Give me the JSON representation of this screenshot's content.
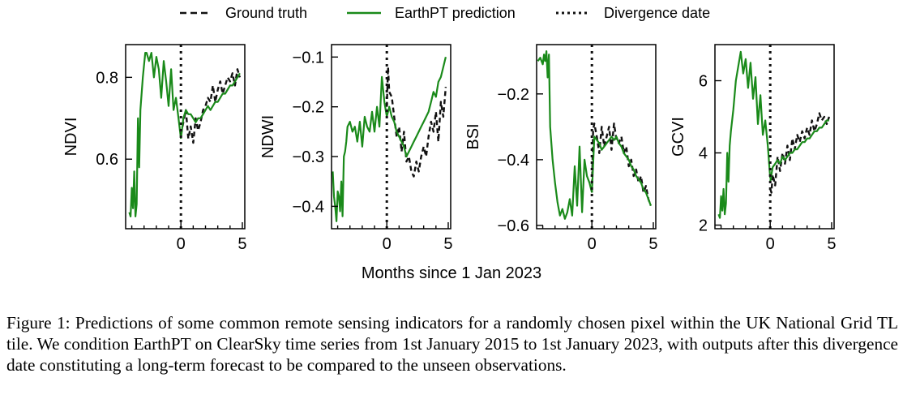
{
  "legend": {
    "ground_truth": "Ground truth",
    "prediction": "EarthPT prediction",
    "divergence": "Divergence date"
  },
  "colors": {
    "prediction": "#1a8a1a",
    "ground_truth": "#111111",
    "axis": "#000000"
  },
  "shared_xlabel": "Months since 1 Jan 2023",
  "caption": "Figure 1: Predictions of some common remote sensing indicators for a randomly chosen pixel within the UK National Grid TL tile. We condition EarthPT on ClearSky time series from 1st January 2015 to 1st January 2023, with outputs after this divergence date constituting a long-term forecast to be compared to the unseen observations.",
  "chart_data": [
    {
      "type": "line",
      "ylabel": "NDVI",
      "xlim": [
        -4.5,
        5.2
      ],
      "ylim": [
        0.43,
        0.88
      ],
      "xticks": [
        0,
        5
      ],
      "yticks": [
        0.6,
        0.8
      ],
      "ytick_labels": [
        "0.6",
        "0.8"
      ],
      "divergence_x": 0,
      "series": [
        {
          "name": "EarthPT prediction",
          "role": "context",
          "x": [
            -4.2,
            -4.1,
            -4.0,
            -3.9,
            -3.8,
            -3.7,
            -3.6,
            -3.5,
            -3.4,
            -3.3,
            -3.2,
            -3.1,
            -3.0,
            -2.9,
            -2.8,
            -2.6,
            -2.4,
            -2.2,
            -2.0,
            -1.8,
            -1.6,
            -1.4,
            -1.2,
            -1.0,
            -0.8,
            -0.6,
            -0.4,
            -0.2,
            0.0
          ],
          "y": [
            0.47,
            0.46,
            0.53,
            0.48,
            0.57,
            0.46,
            0.49,
            0.7,
            0.58,
            0.72,
            0.76,
            0.8,
            0.83,
            0.86,
            0.86,
            0.84,
            0.86,
            0.8,
            0.85,
            0.82,
            0.75,
            0.84,
            0.79,
            0.73,
            0.82,
            0.72,
            0.75,
            0.7,
            0.65
          ]
        },
        {
          "name": "Ground truth",
          "role": "observed",
          "x": [
            0.0,
            0.2,
            0.4,
            0.6,
            0.8,
            1.0,
            1.2,
            1.4,
            1.6,
            1.8,
            2.0,
            2.2,
            2.4,
            2.6,
            2.8,
            3.0,
            3.2,
            3.4,
            3.6,
            3.8,
            4.0,
            4.2,
            4.4,
            4.6,
            4.8
          ],
          "y": [
            0.66,
            0.69,
            0.72,
            0.65,
            0.68,
            0.64,
            0.7,
            0.67,
            0.69,
            0.72,
            0.73,
            0.75,
            0.74,
            0.78,
            0.74,
            0.77,
            0.79,
            0.76,
            0.78,
            0.8,
            0.79,
            0.81,
            0.78,
            0.82,
            0.8
          ]
        },
        {
          "name": "EarthPT prediction",
          "role": "forecast",
          "x": [
            0.0,
            0.2,
            0.4,
            0.6,
            0.8,
            1.0,
            1.2,
            1.4,
            1.6,
            1.8,
            2.0,
            2.2,
            2.4,
            2.6,
            2.8,
            3.0,
            3.2,
            3.4,
            3.6,
            3.8,
            4.0,
            4.2,
            4.4,
            4.6,
            4.8
          ],
          "y": [
            0.65,
            0.7,
            0.72,
            0.71,
            0.71,
            0.7,
            0.69,
            0.7,
            0.7,
            0.71,
            0.72,
            0.73,
            0.72,
            0.73,
            0.74,
            0.74,
            0.75,
            0.76,
            0.76,
            0.77,
            0.78,
            0.78,
            0.79,
            0.8,
            0.81
          ]
        }
      ]
    },
    {
      "type": "line",
      "ylabel": "NDWI",
      "xlim": [
        -4.5,
        5.2
      ],
      "ylim": [
        -0.445,
        -0.075
      ],
      "xticks": [
        0,
        5
      ],
      "yticks": [
        -0.4,
        -0.3,
        -0.2,
        -0.1
      ],
      "ytick_labels": [
        "−0.4",
        "−0.3",
        "−0.2",
        "−0.1"
      ],
      "divergence_x": 0,
      "series": [
        {
          "name": "EarthPT prediction",
          "role": "context",
          "x": [
            -4.4,
            -4.3,
            -4.2,
            -4.1,
            -4.0,
            -3.9,
            -3.8,
            -3.7,
            -3.6,
            -3.5,
            -3.4,
            -3.3,
            -3.2,
            -3.0,
            -2.8,
            -2.6,
            -2.4,
            -2.2,
            -2.0,
            -1.8,
            -1.6,
            -1.4,
            -1.2,
            -1.0,
            -0.8,
            -0.6,
            -0.4,
            -0.2,
            0.0
          ],
          "y": [
            -0.33,
            -0.38,
            -0.4,
            -0.43,
            -0.37,
            -0.38,
            -0.41,
            -0.35,
            -0.42,
            -0.3,
            -0.29,
            -0.27,
            -0.24,
            -0.23,
            -0.25,
            -0.24,
            -0.27,
            -0.23,
            -0.28,
            -0.22,
            -0.24,
            -0.25,
            -0.21,
            -0.25,
            -0.2,
            -0.24,
            -0.14,
            -0.19,
            -0.22
          ]
        },
        {
          "name": "Ground truth",
          "role": "observed",
          "x": [
            0.0,
            0.1,
            0.2,
            0.4,
            0.6,
            0.8,
            1.0,
            1.2,
            1.4,
            1.6,
            1.8,
            2.0,
            2.2,
            2.4,
            2.6,
            2.8,
            3.0,
            3.2,
            3.4,
            3.6,
            3.8,
            4.0,
            4.2,
            4.4,
            4.6,
            4.8
          ],
          "y": [
            -0.2,
            -0.12,
            -0.17,
            -0.18,
            -0.22,
            -0.26,
            -0.24,
            -0.29,
            -0.25,
            -0.31,
            -0.3,
            -0.33,
            -0.34,
            -0.31,
            -0.33,
            -0.3,
            -0.28,
            -0.3,
            -0.26,
            -0.23,
            -0.25,
            -0.21,
            -0.27,
            -0.19,
            -0.22,
            -0.16
          ]
        },
        {
          "name": "EarthPT prediction",
          "role": "forecast",
          "x": [
            0.0,
            0.2,
            0.4,
            0.6,
            0.8,
            1.0,
            1.2,
            1.4,
            1.6,
            1.8,
            2.0,
            2.2,
            2.4,
            2.6,
            2.8,
            3.0,
            3.2,
            3.4,
            3.6,
            3.8,
            4.0,
            4.2,
            4.4,
            4.6,
            4.8
          ],
          "y": [
            -0.22,
            -0.2,
            -0.22,
            -0.23,
            -0.25,
            -0.26,
            -0.27,
            -0.28,
            -0.3,
            -0.29,
            -0.28,
            -0.27,
            -0.26,
            -0.25,
            -0.24,
            -0.23,
            -0.22,
            -0.21,
            -0.19,
            -0.17,
            -0.18,
            -0.15,
            -0.14,
            -0.12,
            -0.1
          ]
        }
      ]
    },
    {
      "type": "line",
      "ylabel": "BSI",
      "xlim": [
        -4.5,
        5.2
      ],
      "ylim": [
        -0.61,
        -0.05
      ],
      "xticks": [
        0,
        5
      ],
      "yticks": [
        -0.6,
        -0.4,
        -0.2
      ],
      "ytick_labels": [
        "−0.6",
        "−0.4",
        "−0.2"
      ],
      "divergence_x": 0,
      "series": [
        {
          "name": "EarthPT prediction",
          "role": "context",
          "x": [
            -4.4,
            -4.2,
            -4.0,
            -3.9,
            -3.8,
            -3.7,
            -3.6,
            -3.5,
            -3.4,
            -3.3,
            -3.2,
            -3.0,
            -2.8,
            -2.6,
            -2.4,
            -2.2,
            -2.0,
            -1.8,
            -1.6,
            -1.4,
            -1.2,
            -1.0,
            -0.8,
            -0.6,
            -0.4,
            -0.2,
            0.0
          ],
          "y": [
            -0.1,
            -0.09,
            -0.11,
            -0.08,
            -0.1,
            -0.07,
            -0.15,
            -0.08,
            -0.3,
            -0.35,
            -0.4,
            -0.47,
            -0.53,
            -0.57,
            -0.55,
            -0.58,
            -0.56,
            -0.52,
            -0.57,
            -0.42,
            -0.54,
            -0.36,
            -0.56,
            -0.4,
            -0.45,
            -0.47,
            -0.5
          ]
        },
        {
          "name": "Ground truth",
          "role": "observed",
          "x": [
            0.0,
            0.1,
            0.2,
            0.4,
            0.6,
            0.8,
            1.0,
            1.2,
            1.4,
            1.6,
            1.8,
            2.0,
            2.2,
            2.4,
            2.6,
            2.8,
            3.0,
            3.2,
            3.4,
            3.6,
            3.8,
            4.0,
            4.2,
            4.4,
            4.6,
            4.8
          ],
          "y": [
            -0.5,
            -0.31,
            -0.29,
            -0.33,
            -0.38,
            -0.3,
            -0.36,
            -0.33,
            -0.3,
            -0.37,
            -0.29,
            -0.34,
            -0.35,
            -0.33,
            -0.38,
            -0.36,
            -0.42,
            -0.4,
            -0.45,
            -0.43,
            -0.47,
            -0.45,
            -0.5,
            -0.48,
            -0.52,
            -0.54
          ]
        },
        {
          "name": "EarthPT prediction",
          "role": "forecast",
          "x": [
            0.0,
            0.2,
            0.4,
            0.6,
            0.8,
            1.0,
            1.2,
            1.4,
            1.6,
            1.8,
            2.0,
            2.2,
            2.4,
            2.6,
            2.8,
            3.0,
            3.2,
            3.4,
            3.6,
            3.8,
            4.0,
            4.2,
            4.4,
            4.6,
            4.8
          ],
          "y": [
            -0.5,
            -0.33,
            -0.34,
            -0.35,
            -0.37,
            -0.36,
            -0.35,
            -0.34,
            -0.33,
            -0.34,
            -0.33,
            -0.35,
            -0.36,
            -0.38,
            -0.39,
            -0.4,
            -0.42,
            -0.43,
            -0.45,
            -0.46,
            -0.47,
            -0.49,
            -0.5,
            -0.52,
            -0.54
          ]
        }
      ]
    },
    {
      "type": "line",
      "ylabel": "GCVI",
      "xlim": [
        -4.5,
        5.2
      ],
      "ylim": [
        1.9,
        7.0
      ],
      "xticks": [
        0,
        5
      ],
      "yticks": [
        2,
        4,
        6
      ],
      "ytick_labels": [
        "2",
        "4",
        "6"
      ],
      "divergence_x": 0,
      "series": [
        {
          "name": "EarthPT prediction",
          "role": "context",
          "x": [
            -4.2,
            -4.1,
            -4.0,
            -3.9,
            -3.8,
            -3.7,
            -3.6,
            -3.5,
            -3.4,
            -3.3,
            -3.2,
            -3.0,
            -2.8,
            -2.6,
            -2.4,
            -2.2,
            -2.0,
            -1.8,
            -1.6,
            -1.4,
            -1.2,
            -1.0,
            -0.8,
            -0.6,
            -0.4,
            -0.2,
            0.0
          ],
          "y": [
            2.3,
            2.2,
            2.8,
            2.4,
            3.0,
            2.3,
            2.6,
            4.0,
            3.2,
            4.2,
            4.6,
            5.2,
            6.0,
            6.4,
            6.8,
            6.2,
            6.6,
            5.8,
            6.5,
            5.5,
            6.1,
            4.8,
            5.6,
            4.5,
            4.9,
            4.2,
            3.3
          ]
        },
        {
          "name": "Ground truth",
          "role": "observed",
          "x": [
            0.0,
            0.1,
            0.2,
            0.4,
            0.6,
            0.8,
            1.0,
            1.2,
            1.4,
            1.6,
            1.8,
            2.0,
            2.2,
            2.4,
            2.6,
            2.8,
            3.0,
            3.2,
            3.4,
            3.6,
            3.8,
            4.0,
            4.2,
            4.4,
            4.6,
            4.8
          ],
          "y": [
            3.0,
            2.9,
            3.4,
            3.1,
            3.9,
            3.5,
            4.0,
            3.7,
            4.2,
            3.8,
            4.4,
            4.1,
            4.5,
            4.3,
            4.6,
            4.4,
            4.7,
            4.5,
            4.9,
            4.6,
            4.8,
            5.1,
            4.9,
            5.0,
            4.8,
            5.0
          ]
        },
        {
          "name": "EarthPT prediction",
          "role": "forecast",
          "x": [
            0.0,
            0.2,
            0.4,
            0.6,
            0.8,
            1.0,
            1.2,
            1.4,
            1.6,
            1.8,
            2.0,
            2.2,
            2.4,
            2.6,
            2.8,
            3.0,
            3.2,
            3.4,
            3.6,
            3.8,
            4.0,
            4.2,
            4.4,
            4.6,
            4.8
          ],
          "y": [
            3.2,
            3.6,
            3.7,
            3.8,
            3.7,
            3.9,
            3.8,
            3.9,
            4.0,
            4.0,
            4.1,
            4.1,
            4.2,
            4.3,
            4.3,
            4.4,
            4.4,
            4.5,
            4.6,
            4.6,
            4.7,
            4.7,
            4.8,
            4.9,
            4.9
          ]
        }
      ]
    }
  ]
}
